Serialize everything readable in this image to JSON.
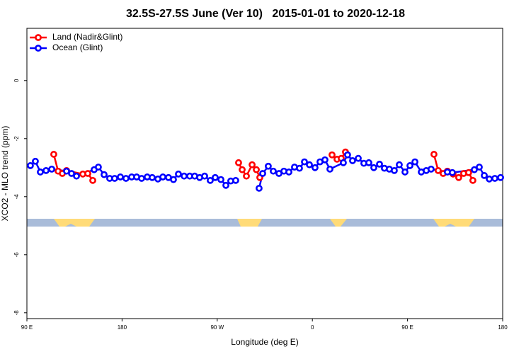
{
  "chart_data": {
    "type": "line",
    "title": "32.5S-27.5S June (Ver 10)   2015-01-01 to 2020-12-18",
    "xlabel": "Longitude (deg E)",
    "ylabel": "XCO2 - MLO trend (ppm)",
    "xlim": [
      90,
      540
    ],
    "xticks": [
      {
        "value": 90,
        "label": "90 E"
      },
      180,
      {
        "value": 270,
        "label": "90 W"
      },
      {
        "value": 360,
        "label": "0"
      },
      {
        "value": 450,
        "label": "90 E"
      },
      {
        "value": 540,
        "label": "180"
      }
    ],
    "ylim": [
      -8.2,
      1.8
    ],
    "yticks": [
      0,
      -2,
      -4,
      -6,
      -8
    ],
    "legend": "topleft",
    "series": [
      {
        "name": "Land (Nadir&Glint)",
        "color": "#ff0000",
        "x": [
          115.4,
          119.5,
          123.5,
          127.5,
          142.9,
          147.6,
          152.3,
          null,
          290.2,
          293.6,
          297.6,
          303.0,
          307.0,
          310.3,
          null,
          378.6,
          383.3,
          387.3,
          391.3,
          null,
          475.0,
          479.0,
          483.7,
          487.7,
          493.1,
          498.4,
          503.1,
          507.8,
          511.8
        ],
        "values": [
          -2.54,
          -3.12,
          -3.2,
          -3.1,
          -3.22,
          -3.2,
          -3.44,
          null,
          -2.83,
          -3.07,
          -3.29,
          -2.9,
          -3.07,
          -3.34,
          null,
          -2.56,
          -2.71,
          -2.68,
          -2.46,
          null,
          -2.54,
          -3.1,
          -3.2,
          -3.12,
          -3.22,
          -3.34,
          -3.2,
          -3.17,
          -3.44
        ]
      },
      {
        "name": "Ocean (Glint)",
        "color": "#0000ff",
        "x": [
          93.3,
          98.0,
          102.7,
          108.1,
          113.5,
          127.5,
          132.2,
          136.9,
          153.6,
          157.6,
          163.0,
          168.3,
          173.0,
          178.4,
          183.7,
          189.1,
          193.8,
          198.5,
          203.8,
          208.5,
          213.9,
          218.6,
          223.9,
          228.6,
          233.3,
          238.7,
          244.0,
          248.7,
          253.4,
          258.1,
          263.4,
          268.1,
          273.5,
          278.2,
          282.8,
          287.5,
          null,
          309.6,
          313.0,
          318.3,
          323.0,
          328.4,
          333.1,
          337.8,
          343.1,
          347.8,
          352.5,
          357.2,
          362.5,
          367.2,
          371.9,
          376.6,
          389.3,
          393.3,
          398.0,
          403.4,
          408.7,
          413.4,
          418.1,
          423.5,
          428.1,
          432.8,
          437.5,
          442.2,
          447.6,
          452.3,
          457.0,
          463.0,
          467.7,
          472.3,
          487.7,
          492.4,
          513.2,
          517.9,
          522.6,
          527.3,
          532.6,
          538.0
        ],
        "values": [
          -2.93,
          -2.78,
          -3.15,
          -3.1,
          -3.05,
          -3.12,
          -3.2,
          -3.29,
          -3.07,
          -2.98,
          -3.24,
          -3.37,
          -3.37,
          -3.32,
          -3.37,
          -3.32,
          -3.32,
          -3.37,
          -3.32,
          -3.34,
          -3.39,
          -3.32,
          -3.34,
          -3.41,
          -3.22,
          -3.29,
          -3.29,
          -3.29,
          -3.34,
          -3.29,
          -3.44,
          -3.34,
          -3.41,
          -3.61,
          -3.46,
          -3.44,
          null,
          -3.71,
          -3.2,
          -2.95,
          -3.12,
          -3.2,
          -3.12,
          -3.15,
          -2.98,
          -3.02,
          -2.8,
          -2.9,
          -3.0,
          -2.8,
          -2.73,
          -3.05,
          -2.83,
          -2.56,
          -2.76,
          -2.68,
          -2.85,
          -2.83,
          -3.0,
          -2.88,
          -3.02,
          -3.05,
          -3.1,
          -2.9,
          -3.15,
          -2.93,
          -2.8,
          -3.15,
          -3.1,
          -3.05,
          -3.15,
          -3.17,
          -3.07,
          -2.98,
          -3.27,
          -3.39,
          -3.37,
          -3.34
        ]
      }
    ]
  }
}
